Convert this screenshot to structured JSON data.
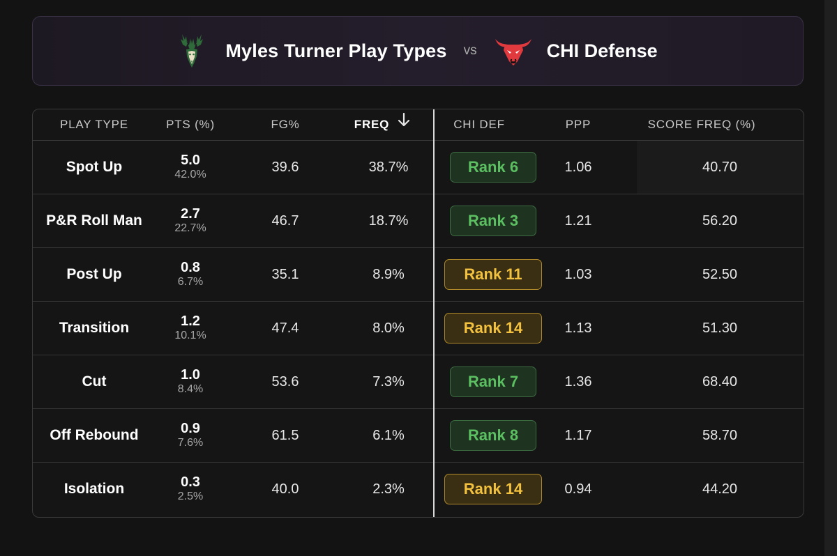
{
  "header": {
    "title": "Myles Turner Play Types",
    "vs": "vs",
    "defense": "CHI Defense",
    "player_team_logo": "bucks-deer-logo-icon",
    "opponent_logo": "bulls-logo-icon"
  },
  "columns": {
    "play_type": "PLAY TYPE",
    "pts": "PTS (%)",
    "fg": "FG%",
    "freq": "FREQ",
    "chi_def": "CHI DEF",
    "ppp": "PPP",
    "score_freq": "SCORE FREQ (%)"
  },
  "colors": {
    "rank_good": "#5cbf62",
    "rank_mid": "#f2c13f",
    "header_border": "#3b3146"
  },
  "rows": [
    {
      "play_type": "Spot Up",
      "pts": "5.0",
      "pts_pct": "42.0%",
      "fg": "39.6",
      "freq": "38.7%",
      "rank": "Rank 6",
      "rank_level": "good",
      "ppp": "1.06",
      "score_freq": "40.70"
    },
    {
      "play_type": "P&R Roll Man",
      "pts": "2.7",
      "pts_pct": "22.7%",
      "fg": "46.7",
      "freq": "18.7%",
      "rank": "Rank 3",
      "rank_level": "good",
      "ppp": "1.21",
      "score_freq": "56.20"
    },
    {
      "play_type": "Post Up",
      "pts": "0.8",
      "pts_pct": "6.7%",
      "fg": "35.1",
      "freq": "8.9%",
      "rank": "Rank 11",
      "rank_level": "mid",
      "ppp": "1.03",
      "score_freq": "52.50"
    },
    {
      "play_type": "Transition",
      "pts": "1.2",
      "pts_pct": "10.1%",
      "fg": "47.4",
      "freq": "8.0%",
      "rank": "Rank 14",
      "rank_level": "mid",
      "ppp": "1.13",
      "score_freq": "51.30"
    },
    {
      "play_type": "Cut",
      "pts": "1.0",
      "pts_pct": "8.4%",
      "fg": "53.6",
      "freq": "7.3%",
      "rank": "Rank 7",
      "rank_level": "good",
      "ppp": "1.36",
      "score_freq": "68.40"
    },
    {
      "play_type": "Off Rebound",
      "pts": "0.9",
      "pts_pct": "7.6%",
      "fg": "61.5",
      "freq": "6.1%",
      "rank": "Rank 8",
      "rank_level": "good",
      "ppp": "1.17",
      "score_freq": "58.70"
    },
    {
      "play_type": "Isolation",
      "pts": "0.3",
      "pts_pct": "2.5%",
      "fg": "40.0",
      "freq": "2.3%",
      "rank": "Rank 14",
      "rank_level": "mid",
      "ppp": "0.94",
      "score_freq": "44.20"
    }
  ]
}
